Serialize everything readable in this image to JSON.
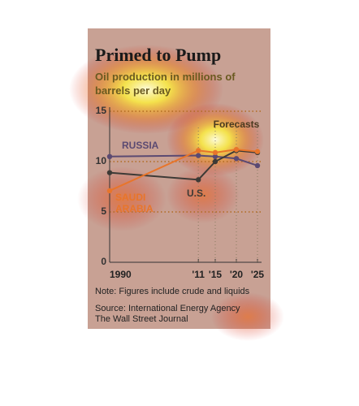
{
  "chart_data": {
    "type": "line",
    "title": "Primed to Pump",
    "subtitle": "Oil production in millions of barrels per day",
    "annotation": "Forecasts",
    "note": "Note: Figures include crude and liquids",
    "source": "Source: International Energy Agency",
    "publisher": "The Wall Street Journal",
    "x": [
      1990,
      2011,
      2015,
      2020,
      2025
    ],
    "xlim": [
      1990,
      2025
    ],
    "xticks": [
      {
        "value": 1990,
        "label": "1990"
      },
      {
        "value": 2011,
        "label": "'11"
      },
      {
        "value": 2015,
        "label": "'15"
      },
      {
        "value": 2020,
        "label": "'20"
      },
      {
        "value": 2025,
        "label": "'25"
      }
    ],
    "ylim": [
      0,
      15
    ],
    "yticks": [
      0,
      5,
      10,
      15
    ],
    "grid": true,
    "series": [
      {
        "name": "RUSSIA",
        "color": "#5b4a72",
        "values": [
          10.5,
          10.6,
          10.5,
          10.3,
          9.6
        ]
      },
      {
        "name": "U.S.",
        "color": "#3d3a36",
        "values": [
          8.9,
          8.2,
          10.0,
          11.1,
          10.9
        ]
      },
      {
        "name": "SAUDI ARABIA",
        "color": "#e8752a",
        "values": [
          7.1,
          11.1,
          10.9,
          11.2,
          11.0
        ]
      }
    ]
  }
}
